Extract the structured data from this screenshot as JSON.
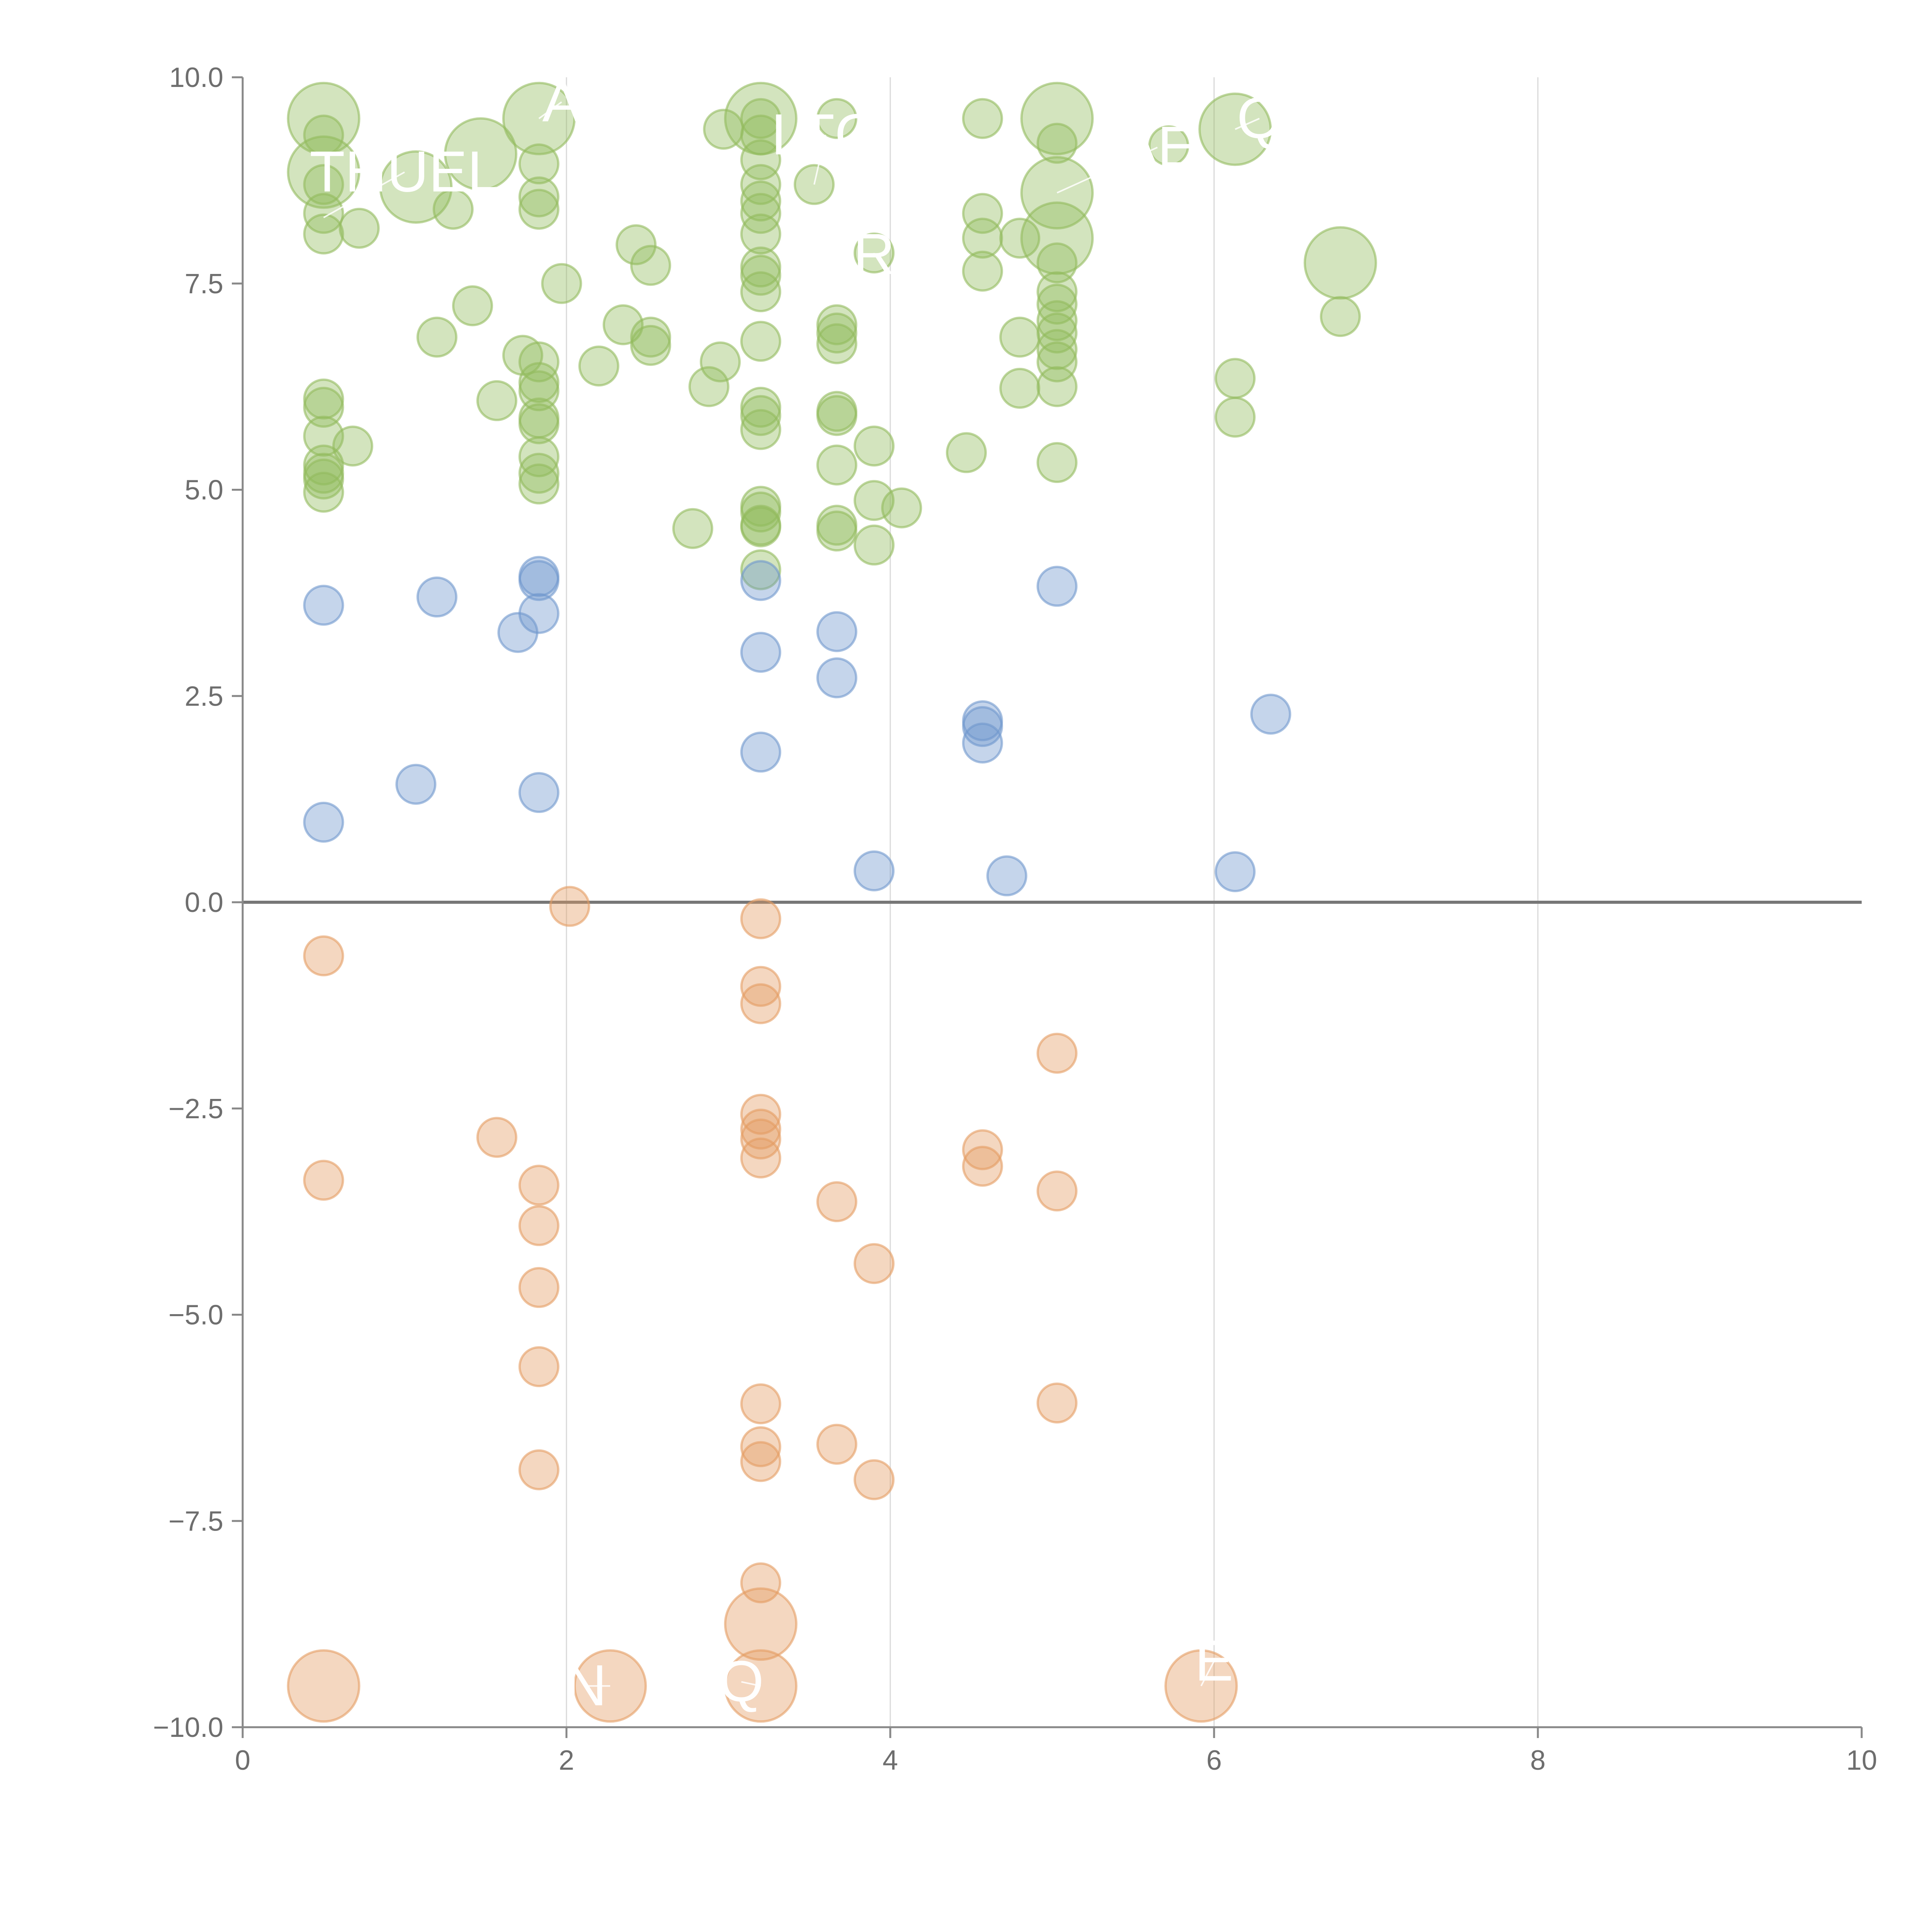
{
  "chart_data": {
    "type": "scatter",
    "title": "",
    "xlabel": "",
    "ylabel": "",
    "xlim": [
      0,
      10
    ],
    "ylim": [
      -10,
      10
    ],
    "x_ticks": [
      "0",
      "2",
      "4",
      "6",
      "8",
      "10"
    ],
    "y_ticks": [
      "−10.0",
      "−7.5",
      "−5.0",
      "−2.5",
      "0.0",
      "2.5",
      "5.0",
      "7.5",
      "10.0"
    ],
    "grid": "vertical lines at x ticks",
    "zero_line": true,
    "colors": {
      "high": "#92bb5d",
      "mid": "#6f97cd",
      "negative": "#e49c62"
    },
    "series": [
      {
        "color_key": "high",
        "points": [
          [
            0.5,
            9.5,
            2
          ],
          [
            0.5,
            8.85,
            2
          ],
          [
            0.5,
            9.3,
            1
          ],
          [
            0.5,
            8.7,
            1
          ],
          [
            0.5,
            8.35,
            1
          ],
          [
            0.5,
            8.1,
            1
          ],
          [
            0.72,
            8.17,
            1
          ],
          [
            1.07,
            8.67,
            2
          ],
          [
            1.3,
            8.4,
            1
          ],
          [
            1.47,
            9.07,
            2
          ],
          [
            1.83,
            9.5,
            2
          ],
          [
            1.83,
            8.95,
            1
          ],
          [
            1.83,
            8.55,
            1
          ],
          [
            1.83,
            8.4,
            1
          ],
          [
            3.2,
            9.5,
            2
          ],
          [
            3.2,
            9.5,
            1
          ],
          [
            2.97,
            9.37,
            1
          ],
          [
            3.2,
            9.3,
            1
          ],
          [
            3.2,
            9.0,
            1
          ],
          [
            3.2,
            8.7,
            1
          ],
          [
            3.2,
            8.5,
            1
          ],
          [
            3.2,
            8.35,
            1
          ],
          [
            3.2,
            8.1,
            1
          ],
          [
            3.2,
            7.7,
            1
          ],
          [
            3.2,
            7.6,
            1
          ],
          [
            3.2,
            7.4,
            1
          ],
          [
            3.53,
            8.7,
            1
          ],
          [
            3.67,
            9.5,
            1
          ],
          [
            4.57,
            9.5,
            1
          ],
          [
            4.57,
            8.35,
            1
          ],
          [
            4.57,
            8.05,
            1
          ],
          [
            4.57,
            7.65,
            1
          ],
          [
            4.8,
            8.05,
            1
          ],
          [
            3.9,
            7.87,
            1
          ],
          [
            5.03,
            9.5,
            2
          ],
          [
            5.03,
            9.2,
            1
          ],
          [
            5.03,
            8.6,
            2
          ],
          [
            5.03,
            8.05,
            2
          ],
          [
            5.03,
            7.75,
            1
          ],
          [
            5.03,
            7.4,
            1
          ],
          [
            5.03,
            7.25,
            1
          ],
          [
            5.03,
            7.05,
            1
          ],
          [
            5.03,
            6.9,
            1
          ],
          [
            5.03,
            6.7,
            1
          ],
          [
            5.03,
            6.55,
            1
          ],
          [
            5.03,
            6.25,
            1
          ],
          [
            5.72,
            9.17,
            1
          ],
          [
            6.13,
            9.37,
            2
          ],
          [
            6.78,
            7.75,
            2
          ],
          [
            6.78,
            7.1,
            1
          ],
          [
            2.43,
            7.97,
            1
          ],
          [
            2.52,
            7.72,
            1
          ],
          [
            1.97,
            7.5,
            1
          ],
          [
            1.42,
            7.23,
            1
          ],
          [
            1.2,
            6.85,
            1
          ],
          [
            2.35,
            7.0,
            1
          ],
          [
            2.52,
            6.85,
            1
          ],
          [
            2.52,
            6.75,
            1
          ],
          [
            2.2,
            6.5,
            1
          ],
          [
            1.73,
            6.63,
            1
          ],
          [
            1.83,
            6.55,
            1
          ],
          [
            1.83,
            6.3,
            1
          ],
          [
            1.83,
            6.2,
            1
          ],
          [
            1.57,
            6.08,
            1
          ],
          [
            1.83,
            5.87,
            1
          ],
          [
            1.83,
            5.8,
            1
          ],
          [
            1.83,
            5.4,
            1
          ],
          [
            1.83,
            5.2,
            1
          ],
          [
            1.83,
            5.07,
            1
          ],
          [
            2.95,
            6.55,
            1
          ],
          [
            2.88,
            6.25,
            1
          ],
          [
            3.2,
            6.8,
            1
          ],
          [
            3.2,
            6.0,
            1
          ],
          [
            3.2,
            5.9,
            1
          ],
          [
            3.2,
            5.73,
            1
          ],
          [
            3.67,
            7.0,
            1
          ],
          [
            3.67,
            6.9,
            1
          ],
          [
            3.67,
            6.77,
            1
          ],
          [
            3.67,
            5.95,
            1
          ],
          [
            3.67,
            5.9,
            1
          ],
          [
            3.67,
            5.3,
            1
          ],
          [
            3.9,
            5.53,
            1
          ],
          [
            4.47,
            5.45,
            1
          ],
          [
            4.8,
            6.85,
            1
          ],
          [
            4.8,
            6.23,
            1
          ],
          [
            5.03,
            5.33,
            1
          ],
          [
            6.13,
            6.35,
            1
          ],
          [
            6.13,
            5.88,
            1
          ],
          [
            0.5,
            6.1,
            1
          ],
          [
            0.5,
            6.0,
            1
          ],
          [
            0.5,
            5.65,
            1
          ],
          [
            0.5,
            5.3,
            1
          ],
          [
            0.5,
            5.2,
            1
          ],
          [
            0.5,
            5.13,
            1
          ],
          [
            0.5,
            4.97,
            1
          ],
          [
            0.68,
            5.53,
            1
          ],
          [
            2.78,
            4.53,
            1
          ],
          [
            3.2,
            4.8,
            1
          ],
          [
            3.2,
            4.73,
            1
          ],
          [
            3.2,
            4.57,
            1
          ],
          [
            3.2,
            4.55,
            1
          ],
          [
            3.2,
            4.03,
            1
          ],
          [
            3.67,
            4.57,
            1
          ],
          [
            3.67,
            4.5,
            1
          ],
          [
            3.9,
            4.87,
            1
          ],
          [
            4.07,
            4.78,
            1
          ],
          [
            3.9,
            4.33,
            1
          ]
        ]
      },
      {
        "color_key": "mid",
        "points": [
          [
            0.5,
            3.6,
            1
          ],
          [
            1.2,
            3.7,
            1
          ],
          [
            1.83,
            3.95,
            1
          ],
          [
            1.83,
            3.9,
            1
          ],
          [
            1.83,
            3.5,
            1
          ],
          [
            1.7,
            3.27,
            1
          ],
          [
            3.2,
            3.9,
            1
          ],
          [
            3.2,
            3.03,
            1
          ],
          [
            3.2,
            1.82,
            1
          ],
          [
            3.67,
            3.28,
            1
          ],
          [
            3.67,
            2.72,
            1
          ],
          [
            5.03,
            3.83,
            1
          ],
          [
            4.57,
            2.2,
            1
          ],
          [
            4.57,
            2.13,
            1
          ],
          [
            4.57,
            1.93,
            1
          ],
          [
            6.35,
            2.28,
            1
          ],
          [
            0.5,
            0.97,
            1
          ],
          [
            1.07,
            1.43,
            1
          ],
          [
            1.83,
            1.33,
            1
          ],
          [
            3.9,
            0.38,
            1
          ],
          [
            4.72,
            0.32,
            1
          ],
          [
            6.13,
            0.37,
            1
          ]
        ]
      },
      {
        "color_key": "negative",
        "points": [
          [
            2.02,
            -0.05,
            1
          ],
          [
            3.2,
            -0.2,
            1
          ],
          [
            0.5,
            -0.65,
            1
          ],
          [
            3.2,
            -1.02,
            1
          ],
          [
            3.2,
            -1.23,
            1
          ],
          [
            5.03,
            -1.83,
            1
          ],
          [
            1.57,
            -2.85,
            1
          ],
          [
            0.5,
            -3.37,
            1
          ],
          [
            1.83,
            -3.43,
            1
          ],
          [
            1.83,
            -3.92,
            1
          ],
          [
            3.2,
            -2.57,
            1
          ],
          [
            3.2,
            -2.75,
            1
          ],
          [
            3.2,
            -2.87,
            1
          ],
          [
            3.2,
            -3.1,
            1
          ],
          [
            4.57,
            -3.0,
            1
          ],
          [
            4.57,
            -3.2,
            1
          ],
          [
            5.03,
            -3.5,
            1
          ],
          [
            3.67,
            -3.63,
            1
          ],
          [
            3.9,
            -4.38,
            1
          ],
          [
            1.83,
            -4.67,
            1
          ],
          [
            1.83,
            -5.63,
            1
          ],
          [
            3.2,
            -6.08,
            1
          ],
          [
            5.03,
            -6.07,
            1
          ],
          [
            3.2,
            -6.6,
            1
          ],
          [
            3.2,
            -6.78,
            1
          ],
          [
            3.67,
            -6.57,
            1
          ],
          [
            3.9,
            -7.0,
            1
          ],
          [
            1.83,
            -6.88,
            1
          ],
          [
            3.2,
            -8.25,
            1
          ],
          [
            3.2,
            -8.75,
            2
          ],
          [
            0.5,
            -9.5,
            2
          ],
          [
            2.27,
            -9.5,
            2
          ],
          [
            3.2,
            -9.5,
            2
          ],
          [
            5.92,
            -9.5,
            2
          ]
        ]
      }
    ],
    "annotations": [
      {
        "text": "THUEL",
        "x": 1.0,
        "y": 8.85,
        "anchor_x": 0.5,
        "anchor_y": 8.3
      },
      {
        "text": "A",
        "x": 1.97,
        "y": 9.7,
        "anchor_x": 1.83,
        "anchor_y": 9.5
      },
      {
        "text": "LTG",
        "x": 3.6,
        "y": 9.3,
        "anchor_x": 3.53,
        "anchor_y": 8.7
      },
      {
        "text": "R",
        "x": 3.9,
        "y": 7.85,
        "anchor_x": 3.9,
        "anchor_y": 7.87
      },
      {
        "text": "AE",
        "x": 5.65,
        "y": 9.15,
        "anchor_x": 5.03,
        "anchor_y": 8.6
      },
      {
        "text": "Q",
        "x": 6.28,
        "y": 9.5,
        "anchor_x": 6.13,
        "anchor_y": 9.37
      },
      {
        "text": "N",
        "x": 2.12,
        "y": -9.5,
        "anchor_x": 2.27,
        "anchor_y": -9.5
      },
      {
        "text": "Q",
        "x": 3.08,
        "y": -9.45,
        "anchor_x": 3.2,
        "anchor_y": -9.5
      },
      {
        "text": "E",
        "x": 6.0,
        "y": -9.2,
        "anchor_x": 5.92,
        "anchor_y": -9.5
      }
    ]
  }
}
